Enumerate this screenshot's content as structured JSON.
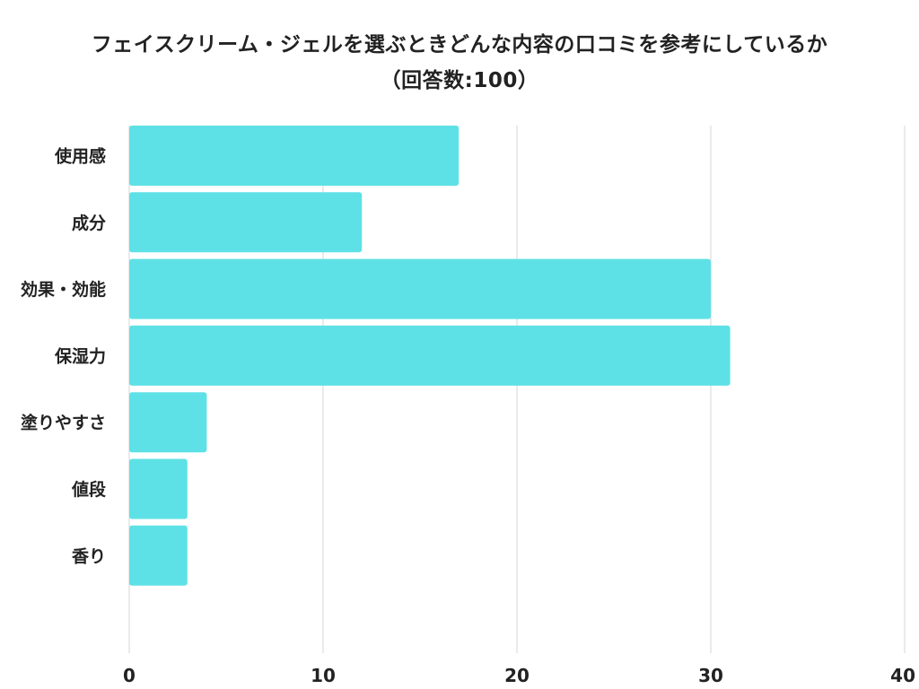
{
  "chart_data": {
    "type": "bar",
    "orientation": "horizontal",
    "title": "フェイスクリーム・ジェルを選ぶときどんな内容の口コミを参考にしているか",
    "subtitle": "（回答数:100）",
    "categories": [
      "使用感",
      "成分",
      "効果・効能",
      "保湿力",
      "塗りやすさ",
      "値段",
      "香り"
    ],
    "values": [
      17,
      12,
      30,
      31,
      4,
      3,
      3
    ],
    "xlim": [
      0,
      40
    ],
    "xticks": [
      0,
      10,
      20,
      30,
      40
    ],
    "grid": true,
    "bar_color": "#5ee1e6",
    "grid_color": "#dddddd"
  }
}
